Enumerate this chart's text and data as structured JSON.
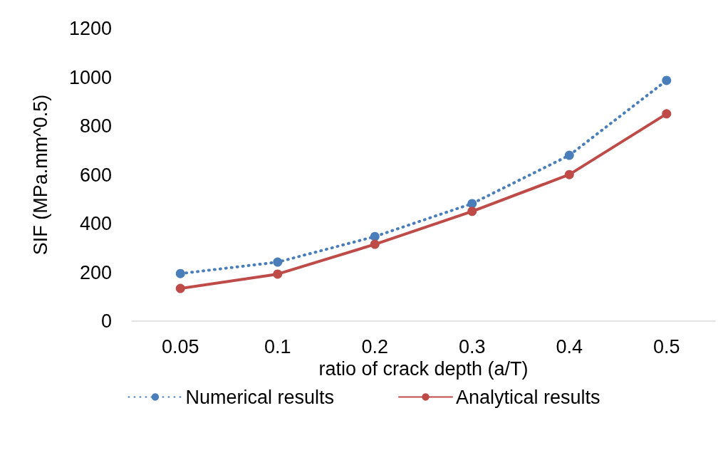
{
  "chart_data": {
    "type": "line",
    "xlabel": "ratio of crack depth (a/T)",
    "ylabel": "SIF (MPa.mm^0.5)",
    "categories": [
      "0.05",
      "0.1",
      "0.2",
      "0.3",
      "0.4",
      "0.5"
    ],
    "series": [
      {
        "name": "Numerical results",
        "color": "#4a7ebb",
        "line_style": "dotted",
        "values": [
          195,
          242,
          347,
          482,
          680,
          987
        ]
      },
      {
        "name": "Analytical results",
        "color": "#be4b48",
        "line_style": "solid",
        "values": [
          134,
          193,
          315,
          450,
          601,
          850
        ]
      }
    ],
    "ylim": [
      0,
      1200
    ],
    "yticks": [
      0,
      200,
      400,
      600,
      800,
      1000,
      1200
    ],
    "grid": false,
    "legend": "bottom",
    "marker": "circle"
  }
}
